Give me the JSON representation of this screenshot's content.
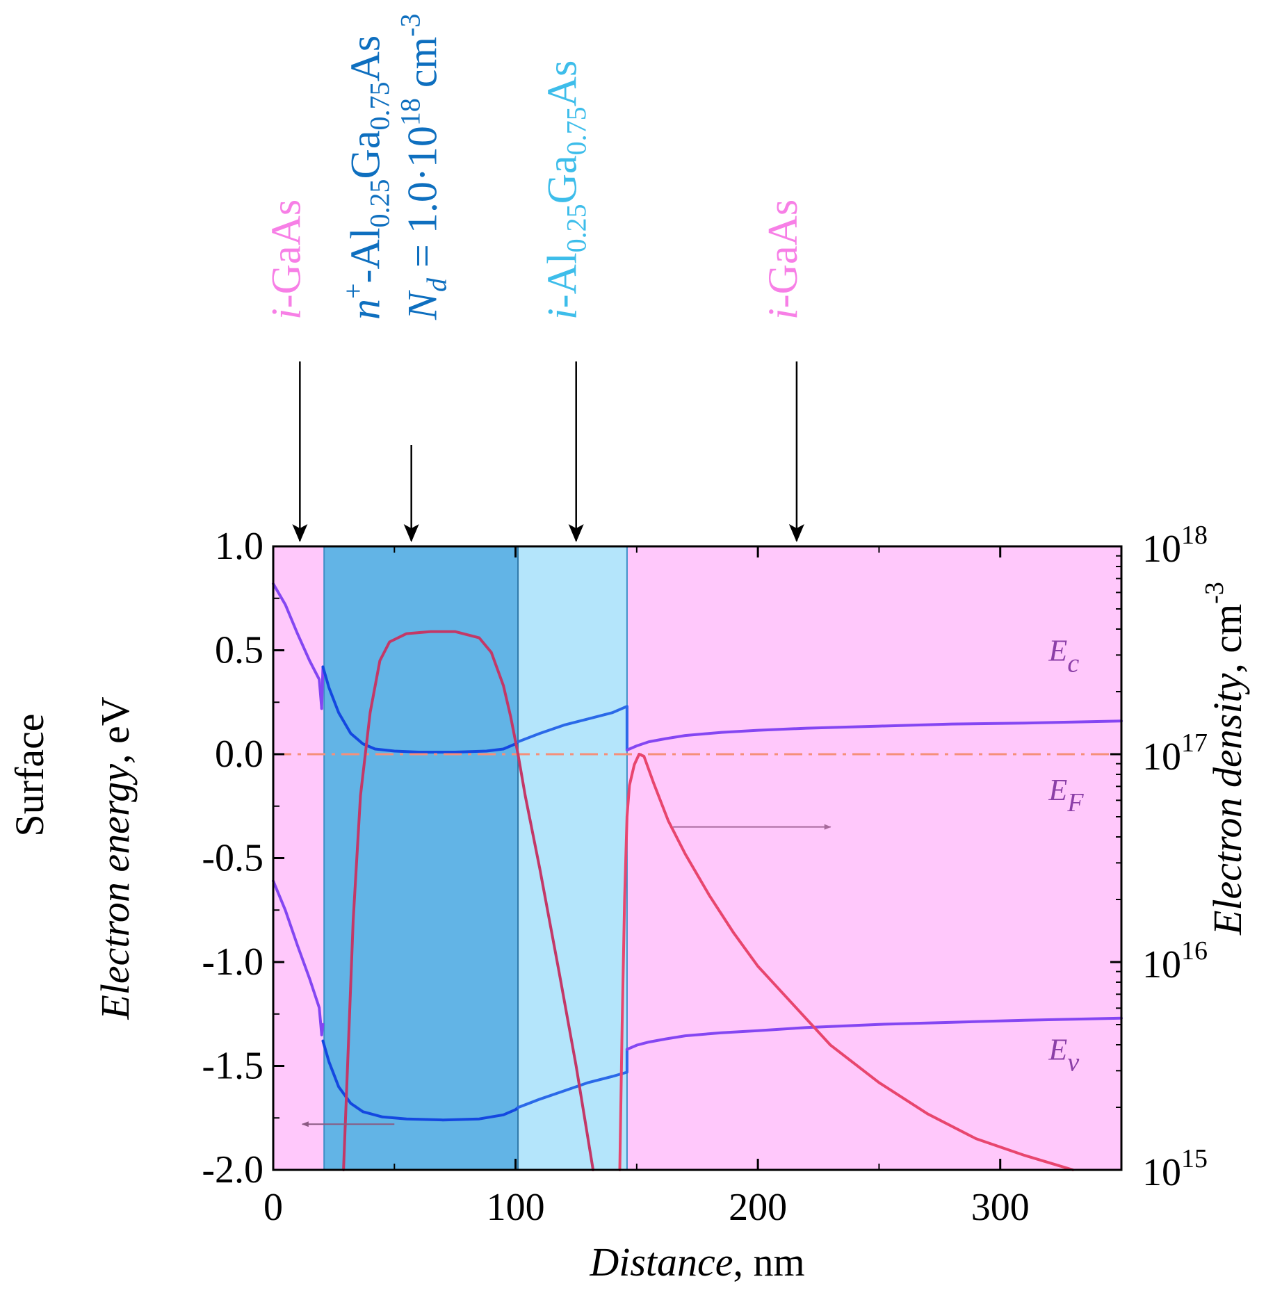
{
  "chart_data": {
    "type": "line",
    "xlabel_italic": "Distance",
    "xlabel_unit": ", nm",
    "ylabel_left_italic": "Electron energy",
    "ylabel_left_unit": ", eV",
    "ylabel_right_italic": "Electron density",
    "ylabel_right_unit": ", cm",
    "ylabel_right_exp": "-3",
    "side_label": "Surface",
    "xlim": [
      0,
      350
    ],
    "ylim_left": [
      -2.0,
      1.0
    ],
    "ylim_right_log10": [
      15,
      18
    ],
    "x_ticks": [
      0,
      100,
      200,
      300
    ],
    "x_tick_labels": [
      "0",
      "100",
      "200",
      "300"
    ],
    "y_ticks_left": [
      1.0,
      0.5,
      0.0,
      -0.5,
      -1.0,
      -1.5,
      -2.0
    ],
    "y_tick_labels_left": [
      "1.0",
      "0.5",
      "0.0",
      "-0.5",
      "-1.0",
      "-1.5",
      "-2.0"
    ],
    "y_ticks_right_log10": [
      18,
      17,
      16,
      15
    ],
    "y_tick_right_base": "10",
    "y_tick_right_exps": [
      "18",
      "17",
      "16",
      "15"
    ],
    "grid": false,
    "regions": [
      {
        "x0": 0,
        "x1": 21,
        "color": "#ffc8fb"
      },
      {
        "x0": 21,
        "x1": 101,
        "color": "#62b4e6"
      },
      {
        "x0": 101,
        "x1": 146,
        "color": "#b4e5fb"
      },
      {
        "x0": 146,
        "x1": 350,
        "color": "#ffc8fb"
      }
    ],
    "layer_labels": [
      {
        "x": 11,
        "lines": [
          [
            {
              "t": "i",
              "i": true
            },
            {
              "t": "-GaAs"
            }
          ]
        ],
        "color": "#f77fe6"
      },
      {
        "x": 57,
        "lines": [
          [
            {
              "t": "n",
              "i": true
            },
            {
              "t": "+",
              "sup": true
            },
            {
              "t": "-Al"
            },
            {
              "t": "0.25",
              "sub": true
            },
            {
              "t": "Ga"
            },
            {
              "t": "0.75",
              "sub": true
            },
            {
              "t": "As"
            }
          ],
          [
            {
              "t": "N",
              "i": true
            },
            {
              "t": "d",
              "i": true,
              "sub": true
            },
            {
              "t": " = 1.0·10"
            },
            {
              "t": "18",
              "sup": true
            },
            {
              "t": " cm"
            },
            {
              "t": "-3",
              "sup": true
            }
          ]
        ],
        "color": "#0e6fbf"
      },
      {
        "x": 125,
        "lines": [
          [
            {
              "t": "i",
              "i": true
            },
            {
              "t": "-Al"
            },
            {
              "t": "0.25",
              "sub": true
            },
            {
              "t": "Ga"
            },
            {
              "t": "0.75",
              "sub": true
            },
            {
              "t": "As"
            }
          ]
        ],
        "color": "#3dbdea"
      },
      {
        "x": 216,
        "lines": [
          [
            {
              "t": "i",
              "i": true
            },
            {
              "t": "-GaAs"
            }
          ]
        ],
        "color": "#f77fe6"
      }
    ],
    "band_labels": [
      {
        "main": "E",
        "sub": "c",
        "x": 320,
        "y": 0.45
      },
      {
        "main": "E",
        "sub": "F",
        "x": 320,
        "y": -0.22
      },
      {
        "main": "E",
        "sub": "v",
        "x": 320,
        "y": -1.47
      }
    ],
    "series": [
      {
        "key": "Ec",
        "axis": "left",
        "color": "#8446f2",
        "segments": [
          {
            "color": "#8446f2",
            "points": [
              [
                0,
                0.82
              ],
              [
                5,
                0.72
              ],
              [
                10,
                0.58
              ],
              [
                15,
                0.45
              ],
              [
                19,
                0.36
              ],
              [
                20,
                0.22
              ]
            ]
          },
          {
            "color": "#8446f2",
            "points": [
              [
                20,
                0.22
              ],
              [
                20.5,
                0.42
              ]
            ]
          },
          {
            "color": "#1448e0",
            "points": [
              [
                20.5,
                0.42
              ],
              [
                23,
                0.32
              ],
              [
                27,
                0.2
              ],
              [
                32,
                0.1
              ],
              [
                37,
                0.05
              ],
              [
                42,
                0.025
              ],
              [
                50,
                0.015
              ],
              [
                60,
                0.01
              ],
              [
                75,
                0.01
              ],
              [
                88,
                0.015
              ],
              [
                95,
                0.025
              ],
              [
                100,
                0.05
              ],
              [
                101,
                0.06
              ]
            ]
          },
          {
            "color": "#2a69e8",
            "points": [
              [
                101,
                0.06
              ],
              [
                110,
                0.1
              ],
              [
                120,
                0.14
              ],
              [
                130,
                0.17
              ],
              [
                140,
                0.2
              ],
              [
                146,
                0.23
              ],
              [
                146,
                0.02
              ]
            ]
          },
          {
            "color": "#8446f2",
            "points": [
              [
                146,
                0.02
              ],
              [
                150,
                0.04
              ],
              [
                155,
                0.06
              ],
              [
                162,
                0.075
              ],
              [
                170,
                0.09
              ],
              [
                185,
                0.105
              ],
              [
                200,
                0.115
              ],
              [
                220,
                0.125
              ],
              [
                250,
                0.135
              ],
              [
                280,
                0.145
              ],
              [
                310,
                0.15
              ],
              [
                330,
                0.155
              ],
              [
                350,
                0.16
              ]
            ]
          }
        ]
      },
      {
        "key": "Ev",
        "axis": "left",
        "color": "#8446f2",
        "segments": [
          {
            "color": "#8446f2",
            "points": [
              [
                0,
                -0.61
              ],
              [
                5,
                -0.75
              ],
              [
                10,
                -0.92
              ],
              [
                15,
                -1.08
              ],
              [
                19,
                -1.22
              ],
              [
                20,
                -1.35
              ]
            ]
          },
          {
            "color": "#8446f2",
            "points": [
              [
                20,
                -1.35
              ],
              [
                20.5,
                -1.3
              ]
            ]
          },
          {
            "color": "#1448e0",
            "points": [
              [
                20.5,
                -1.38
              ],
              [
                23,
                -1.48
              ],
              [
                27,
                -1.6
              ],
              [
                32,
                -1.68
              ],
              [
                37,
                -1.72
              ],
              [
                45,
                -1.745
              ],
              [
                55,
                -1.755
              ],
              [
                70,
                -1.76
              ],
              [
                85,
                -1.755
              ],
              [
                95,
                -1.735
              ],
              [
                100,
                -1.71
              ],
              [
                101,
                -1.7
              ]
            ]
          },
          {
            "color": "#2a69e8",
            "points": [
              [
                101,
                -1.7
              ],
              [
                110,
                -1.66
              ],
              [
                120,
                -1.62
              ],
              [
                130,
                -1.58
              ],
              [
                140,
                -1.55
              ],
              [
                146,
                -1.53
              ],
              [
                146,
                -1.42
              ]
            ]
          },
          {
            "color": "#8446f2",
            "points": [
              [
                146,
                -1.42
              ],
              [
                150,
                -1.4
              ],
              [
                155,
                -1.385
              ],
              [
                162,
                -1.37
              ],
              [
                170,
                -1.355
              ],
              [
                185,
                -1.34
              ],
              [
                200,
                -1.33
              ],
              [
                220,
                -1.315
              ],
              [
                250,
                -1.3
              ],
              [
                280,
                -1.29
              ],
              [
                310,
                -1.28
              ],
              [
                330,
                -1.275
              ],
              [
                350,
                -1.27
              ]
            ]
          }
        ]
      },
      {
        "key": "EF",
        "axis": "left",
        "color": "#f58f7a",
        "dashed": true,
        "segments": [
          {
            "color": "#f58f7a",
            "points": [
              [
                0,
                0.0
              ],
              [
                350,
                0.0
              ]
            ]
          }
        ]
      },
      {
        "key": "n",
        "axis": "right",
        "color": "#e8456e",
        "segments": [
          {
            "color": "#c33867",
            "points": [
              [
                29,
                15.0
              ],
              [
                31,
                15.6
              ],
              [
                33,
                16.2
              ],
              [
                36,
                16.8
              ],
              [
                40,
                17.2
              ],
              [
                44,
                17.45
              ],
              [
                48,
                17.54
              ],
              [
                55,
                17.58
              ],
              [
                65,
                17.59
              ],
              [
                75,
                17.59
              ],
              [
                85,
                17.56
              ],
              [
                90,
                17.49
              ],
              [
                95,
                17.33
              ],
              [
                98,
                17.18
              ],
              [
                101,
                17.0
              ],
              [
                104,
                16.8
              ],
              [
                110,
                16.45
              ],
              [
                118,
                15.95
              ],
              [
                125,
                15.5
              ],
              [
                132,
                15.0
              ]
            ]
          },
          {
            "color": "#e8456e",
            "points": [
              [
                143,
                15.0
              ],
              [
                144,
                15.7
              ],
              [
                145,
                16.3
              ],
              [
                146,
                16.7
              ],
              [
                147,
                16.85
              ],
              [
                149,
                16.95
              ],
              [
                151,
                17.0
              ],
              [
                153,
                16.99
              ],
              [
                157,
                16.86
              ],
              [
                163,
                16.68
              ],
              [
                170,
                16.52
              ],
              [
                180,
                16.32
              ],
              [
                190,
                16.14
              ],
              [
                200,
                15.98
              ],
              [
                215,
                15.79
              ],
              [
                230,
                15.6
              ],
              [
                250,
                15.42
              ],
              [
                270,
                15.27
              ],
              [
                290,
                15.15
              ],
              [
                310,
                15.07
              ],
              [
                330,
                15.0
              ]
            ]
          }
        ]
      }
    ],
    "axis_arrows": [
      {
        "from": [
          50,
          -1.78
        ],
        "to": [
          12,
          -1.78
        ],
        "color": "#8a5a82"
      },
      {
        "from": [
          165,
          -0.35
        ],
        "to": [
          230,
          -0.35
        ],
        "color": "#a76a9c"
      }
    ]
  }
}
